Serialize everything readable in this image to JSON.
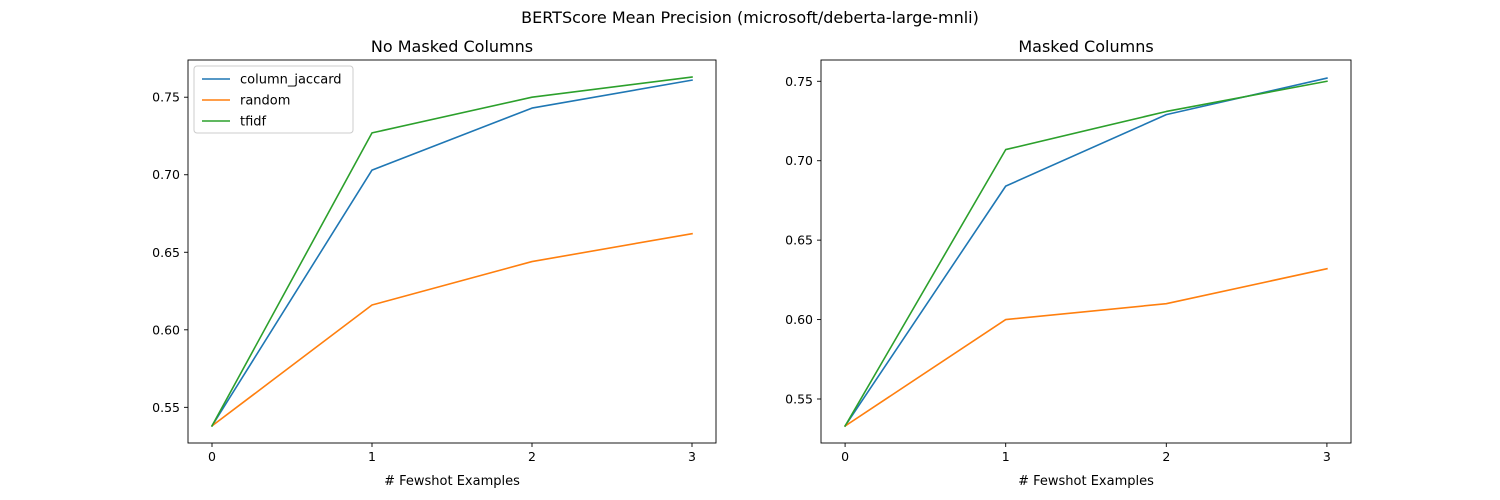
{
  "figure": {
    "suptitle": "BERTScore Mean Precision (microsoft/deberta-large-mnli)"
  },
  "colors": {
    "column_jaccard": "#1f77b4",
    "random": "#ff7f0e",
    "tfidf": "#2ca02c"
  },
  "chart_data": [
    {
      "type": "line",
      "title": "No Masked Columns",
      "xlabel": "# Fewshot Examples",
      "ylabel": "",
      "x": [
        0,
        1,
        2,
        3
      ],
      "xticks": [
        "0",
        "1",
        "2",
        "3"
      ],
      "yticks": [
        "0.55",
        "0.60",
        "0.65",
        "0.70",
        "0.75"
      ],
      "ytick_values": [
        0.55,
        0.6,
        0.65,
        0.7,
        0.75
      ],
      "xlim": [
        -0.15,
        3.15
      ],
      "ylim": [
        0.527,
        0.774
      ],
      "legend": "top-left",
      "grid": false,
      "series": [
        {
          "name": "column_jaccard",
          "values": [
            0.538,
            0.703,
            0.743,
            0.761
          ]
        },
        {
          "name": "random",
          "values": [
            0.538,
            0.616,
            0.644,
            0.662
          ]
        },
        {
          "name": "tfidf",
          "values": [
            0.538,
            0.727,
            0.75,
            0.763
          ]
        }
      ]
    },
    {
      "type": "line",
      "title": "Masked Columns",
      "xlabel": "# Fewshot Examples",
      "ylabel": "",
      "x": [
        0,
        1,
        2,
        3
      ],
      "xticks": [
        "0",
        "1",
        "2",
        "3"
      ],
      "yticks": [
        "0.55",
        "0.60",
        "0.65",
        "0.70",
        "0.75"
      ],
      "ytick_values": [
        0.55,
        0.6,
        0.65,
        0.7,
        0.75
      ],
      "xlim": [
        -0.15,
        3.15
      ],
      "ylim": [
        0.5223,
        0.7634
      ],
      "legend": "none",
      "grid": false,
      "series": [
        {
          "name": "column_jaccard",
          "values": [
            0.533,
            0.684,
            0.729,
            0.752
          ]
        },
        {
          "name": "random",
          "values": [
            0.533,
            0.6,
            0.61,
            0.632
          ]
        },
        {
          "name": "tfidf",
          "values": [
            0.533,
            0.707,
            0.731,
            0.75
          ]
        }
      ]
    }
  ]
}
